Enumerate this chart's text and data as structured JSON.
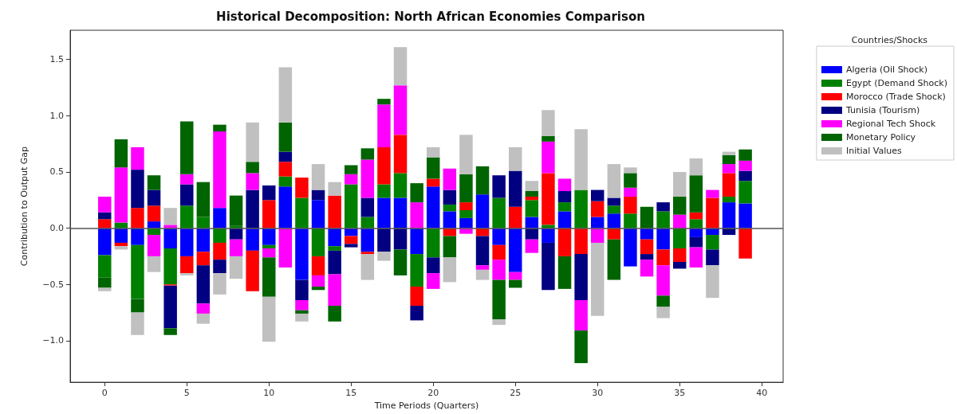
{
  "chart_data": {
    "type": "bar",
    "title": "Historical Decomposition: North African Economies Comparison",
    "xlabel": "Time Periods (Quarters)",
    "ylabel": "Contribution to Output Gap",
    "legend_title": "Countries/Shocks",
    "legend": "right",
    "stacked": true,
    "grid": false,
    "x": [
      0,
      1,
      2,
      3,
      4,
      5,
      6,
      7,
      8,
      9,
      10,
      11,
      12,
      13,
      14,
      15,
      16,
      17,
      18,
      19,
      20,
      21,
      22,
      23,
      24,
      25,
      26,
      27,
      28,
      29,
      30,
      31,
      32,
      33,
      34,
      35,
      36,
      37,
      38,
      39
    ],
    "xlim": [
      -2.1,
      41.3
    ],
    "xticks": [
      0,
      5,
      10,
      15,
      20,
      25,
      30,
      35,
      40
    ],
    "ylim": [
      -1.37,
      1.76
    ],
    "yticks": [
      {
        "value": -1,
        "label": "−1.0"
      },
      {
        "value": -0.5,
        "label": "−0.5"
      },
      {
        "value": 0,
        "label": "0.0"
      },
      {
        "value": 0.5,
        "label": "0.5"
      },
      {
        "value": 1,
        "label": "1.0"
      },
      {
        "value": 1.5,
        "label": "1.5"
      }
    ],
    "ref_lines": [
      {
        "axis": "y",
        "value": 0,
        "color": "#555555"
      }
    ],
    "series": [
      {
        "name": "Algeria (Oil Shock)",
        "color": "#0000ff",
        "values": [
          -0.24,
          -0.13,
          -0.15,
          0.06,
          -0.18,
          -0.25,
          -0.21,
          0.18,
          0,
          -0.2,
          -0.15,
          0.37,
          -0.46,
          0.25,
          -0.16,
          -0.07,
          -0.21,
          0.27,
          0.27,
          -0.23,
          0.37,
          0.15,
          0.09,
          0.3,
          -0.15,
          -0.39,
          0.1,
          -0.13,
          0.15,
          0,
          0.1,
          0.13,
          -0.34,
          -0.1,
          -0.19,
          0,
          -0.08,
          -0.06,
          0.23,
          0.22
        ]
      },
      {
        "name": "Egypt (Demand Shock)",
        "color": "#008000",
        "values": [
          -0.2,
          0.05,
          -0.48,
          -0.06,
          -0.32,
          0.2,
          0.1,
          -0.13,
          0.02,
          0,
          -0.03,
          0.09,
          0.27,
          -0.25,
          -0.04,
          0.39,
          0.1,
          0.12,
          0.22,
          -0.29,
          -0.26,
          0.06,
          0.07,
          0,
          0.27,
          0,
          0.15,
          0.03,
          0.08,
          0.34,
          0,
          0.07,
          0.13,
          0,
          0.15,
          -0.18,
          0.08,
          -0.13,
          0.05,
          0.2
        ]
      },
      {
        "name": "Morocco (Trade Shock)",
        "color": "#ff0000",
        "values": [
          0.08,
          -0.03,
          0.18,
          0.14,
          -0.01,
          -0.15,
          -0.12,
          -0.15,
          0,
          -0.36,
          0.25,
          0.13,
          0.18,
          -0.17,
          0.29,
          -0.07,
          -0.02,
          0.33,
          0.34,
          -0.17,
          0.07,
          -0.07,
          0.07,
          -0.07,
          -0.13,
          0.19,
          0.03,
          0.46,
          -0.25,
          -0.23,
          0.14,
          -0.1,
          0.15,
          -0.13,
          -0.14,
          -0.12,
          0.06,
          0.27,
          0.21,
          -0.27
        ]
      },
      {
        "name": "Tunisia (Tourism)",
        "color": "#000080",
        "values": [
          0.06,
          0,
          0.34,
          0.14,
          -0.38,
          0.19,
          -0.34,
          -0.12,
          -0.1,
          0.34,
          0.13,
          0.09,
          -0.18,
          0.09,
          -0.21,
          -0.03,
          0.17,
          -0.21,
          -0.19,
          -0.13,
          -0.14,
          0.13,
          0,
          -0.26,
          0.2,
          0.32,
          -0.1,
          -0.42,
          0.1,
          -0.41,
          0.1,
          0.07,
          0,
          -0.05,
          0.08,
          -0.06,
          -0.09,
          -0.14,
          -0.06,
          0.09
        ]
      },
      {
        "name": "Regional Tech Shock",
        "color": "#ff00ff",
        "values": [
          0.14,
          0.49,
          0.2,
          -0.19,
          0.03,
          0.09,
          -0.09,
          0.68,
          -0.15,
          0.15,
          -0.08,
          -0.35,
          -0.09,
          -0.1,
          -0.28,
          0.09,
          0.34,
          0.38,
          0.44,
          0.23,
          -0.14,
          0.19,
          -0.05,
          -0.04,
          -0.18,
          -0.07,
          -0.12,
          0.28,
          0.11,
          -0.27,
          -0.13,
          0,
          0.08,
          -0.15,
          -0.27,
          0.12,
          -0.18,
          0.07,
          0.08,
          0.09
        ]
      },
      {
        "name": "Monetary Policy",
        "color": "#006400",
        "values": [
          -0.09,
          0.25,
          -0.12,
          0.13,
          -0.06,
          0.47,
          0.31,
          0.06,
          0.27,
          0.1,
          -0.35,
          0.26,
          -0.03,
          -0.03,
          -0.14,
          0.08,
          0.1,
          0.05,
          -0.23,
          0.17,
          0.19,
          -0.19,
          0.25,
          0.25,
          -0.35,
          -0.07,
          0.05,
          0.05,
          -0.29,
          -0.29,
          0,
          -0.36,
          0.13,
          0.19,
          -0.1,
          0.16,
          0.33,
          0,
          0.08,
          0.1
        ]
      },
      {
        "name": "Initial Values",
        "color": "#c0c0c0",
        "values": [
          -0.03,
          -0.03,
          -0.2,
          -0.14,
          0.15,
          -0.02,
          -0.09,
          -0.19,
          -0.2,
          0.35,
          -0.4,
          0.49,
          -0.07,
          0.23,
          0.12,
          0,
          -0.23,
          -0.08,
          0.34,
          0,
          0.09,
          -0.22,
          0.35,
          -0.09,
          -0.05,
          0.21,
          0.09,
          0.23,
          0,
          0.54,
          -0.65,
          0.3,
          0.05,
          0,
          -0.1,
          0.22,
          0.15,
          -0.29,
          0.03,
          0
        ]
      }
    ]
  }
}
